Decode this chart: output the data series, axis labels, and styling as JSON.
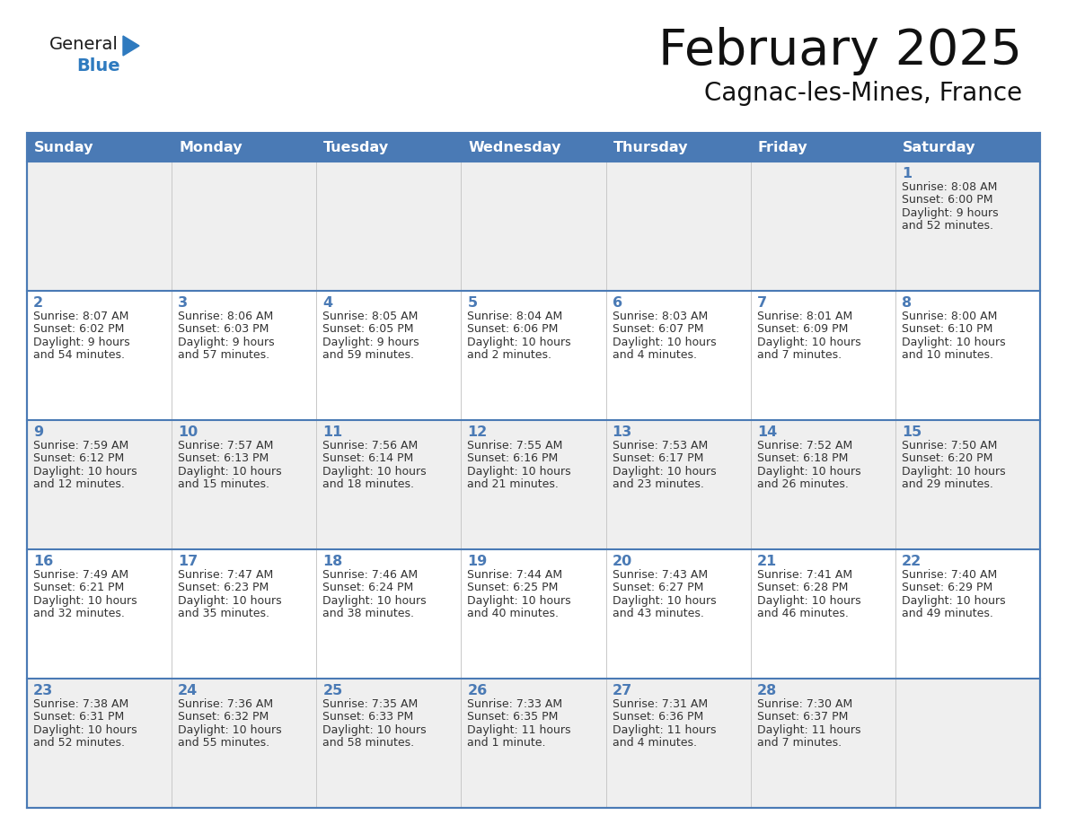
{
  "title": "February 2025",
  "subtitle": "Cagnac-les-Mines, France",
  "days_of_week": [
    "Sunday",
    "Monday",
    "Tuesday",
    "Wednesday",
    "Thursday",
    "Friday",
    "Saturday"
  ],
  "header_bg": "#4a7ab5",
  "header_text": "#ffffff",
  "row_bg_odd": "#efefef",
  "row_bg_even": "#ffffff",
  "border_color": "#4a7ab5",
  "day_number_color": "#4a7ab5",
  "text_color": "#333333",
  "logo_general_color": "#1a1a1a",
  "logo_blue_color": "#2e7abf",
  "calendar_data": [
    {
      "day": 1,
      "col": 6,
      "row": 0,
      "sunrise": "8:08 AM",
      "sunset": "6:00 PM",
      "daylight_line1": "Daylight: 9 hours",
      "daylight_line2": "and 52 minutes."
    },
    {
      "day": 2,
      "col": 0,
      "row": 1,
      "sunrise": "8:07 AM",
      "sunset": "6:02 PM",
      "daylight_line1": "Daylight: 9 hours",
      "daylight_line2": "and 54 minutes."
    },
    {
      "day": 3,
      "col": 1,
      "row": 1,
      "sunrise": "8:06 AM",
      "sunset": "6:03 PM",
      "daylight_line1": "Daylight: 9 hours",
      "daylight_line2": "and 57 minutes."
    },
    {
      "day": 4,
      "col": 2,
      "row": 1,
      "sunrise": "8:05 AM",
      "sunset": "6:05 PM",
      "daylight_line1": "Daylight: 9 hours",
      "daylight_line2": "and 59 minutes."
    },
    {
      "day": 5,
      "col": 3,
      "row": 1,
      "sunrise": "8:04 AM",
      "sunset": "6:06 PM",
      "daylight_line1": "Daylight: 10 hours",
      "daylight_line2": "and 2 minutes."
    },
    {
      "day": 6,
      "col": 4,
      "row": 1,
      "sunrise": "8:03 AM",
      "sunset": "6:07 PM",
      "daylight_line1": "Daylight: 10 hours",
      "daylight_line2": "and 4 minutes."
    },
    {
      "day": 7,
      "col": 5,
      "row": 1,
      "sunrise": "8:01 AM",
      "sunset": "6:09 PM",
      "daylight_line1": "Daylight: 10 hours",
      "daylight_line2": "and 7 minutes."
    },
    {
      "day": 8,
      "col": 6,
      "row": 1,
      "sunrise": "8:00 AM",
      "sunset": "6:10 PM",
      "daylight_line1": "Daylight: 10 hours",
      "daylight_line2": "and 10 minutes."
    },
    {
      "day": 9,
      "col": 0,
      "row": 2,
      "sunrise": "7:59 AM",
      "sunset": "6:12 PM",
      "daylight_line1": "Daylight: 10 hours",
      "daylight_line2": "and 12 minutes."
    },
    {
      "day": 10,
      "col": 1,
      "row": 2,
      "sunrise": "7:57 AM",
      "sunset": "6:13 PM",
      "daylight_line1": "Daylight: 10 hours",
      "daylight_line2": "and 15 minutes."
    },
    {
      "day": 11,
      "col": 2,
      "row": 2,
      "sunrise": "7:56 AM",
      "sunset": "6:14 PM",
      "daylight_line1": "Daylight: 10 hours",
      "daylight_line2": "and 18 minutes."
    },
    {
      "day": 12,
      "col": 3,
      "row": 2,
      "sunrise": "7:55 AM",
      "sunset": "6:16 PM",
      "daylight_line1": "Daylight: 10 hours",
      "daylight_line2": "and 21 minutes."
    },
    {
      "day": 13,
      "col": 4,
      "row": 2,
      "sunrise": "7:53 AM",
      "sunset": "6:17 PM",
      "daylight_line1": "Daylight: 10 hours",
      "daylight_line2": "and 23 minutes."
    },
    {
      "day": 14,
      "col": 5,
      "row": 2,
      "sunrise": "7:52 AM",
      "sunset": "6:18 PM",
      "daylight_line1": "Daylight: 10 hours",
      "daylight_line2": "and 26 minutes."
    },
    {
      "day": 15,
      "col": 6,
      "row": 2,
      "sunrise": "7:50 AM",
      "sunset": "6:20 PM",
      "daylight_line1": "Daylight: 10 hours",
      "daylight_line2": "and 29 minutes."
    },
    {
      "day": 16,
      "col": 0,
      "row": 3,
      "sunrise": "7:49 AM",
      "sunset": "6:21 PM",
      "daylight_line1": "Daylight: 10 hours",
      "daylight_line2": "and 32 minutes."
    },
    {
      "day": 17,
      "col": 1,
      "row": 3,
      "sunrise": "7:47 AM",
      "sunset": "6:23 PM",
      "daylight_line1": "Daylight: 10 hours",
      "daylight_line2": "and 35 minutes."
    },
    {
      "day": 18,
      "col": 2,
      "row": 3,
      "sunrise": "7:46 AM",
      "sunset": "6:24 PM",
      "daylight_line1": "Daylight: 10 hours",
      "daylight_line2": "and 38 minutes."
    },
    {
      "day": 19,
      "col": 3,
      "row": 3,
      "sunrise": "7:44 AM",
      "sunset": "6:25 PM",
      "daylight_line1": "Daylight: 10 hours",
      "daylight_line2": "and 40 minutes."
    },
    {
      "day": 20,
      "col": 4,
      "row": 3,
      "sunrise": "7:43 AM",
      "sunset": "6:27 PM",
      "daylight_line1": "Daylight: 10 hours",
      "daylight_line2": "and 43 minutes."
    },
    {
      "day": 21,
      "col": 5,
      "row": 3,
      "sunrise": "7:41 AM",
      "sunset": "6:28 PM",
      "daylight_line1": "Daylight: 10 hours",
      "daylight_line2": "and 46 minutes."
    },
    {
      "day": 22,
      "col": 6,
      "row": 3,
      "sunrise": "7:40 AM",
      "sunset": "6:29 PM",
      "daylight_line1": "Daylight: 10 hours",
      "daylight_line2": "and 49 minutes."
    },
    {
      "day": 23,
      "col": 0,
      "row": 4,
      "sunrise": "7:38 AM",
      "sunset": "6:31 PM",
      "daylight_line1": "Daylight: 10 hours",
      "daylight_line2": "and 52 minutes."
    },
    {
      "day": 24,
      "col": 1,
      "row": 4,
      "sunrise": "7:36 AM",
      "sunset": "6:32 PM",
      "daylight_line1": "Daylight: 10 hours",
      "daylight_line2": "and 55 minutes."
    },
    {
      "day": 25,
      "col": 2,
      "row": 4,
      "sunrise": "7:35 AM",
      "sunset": "6:33 PM",
      "daylight_line1": "Daylight: 10 hours",
      "daylight_line2": "and 58 minutes."
    },
    {
      "day": 26,
      "col": 3,
      "row": 4,
      "sunrise": "7:33 AM",
      "sunset": "6:35 PM",
      "daylight_line1": "Daylight: 11 hours",
      "daylight_line2": "and 1 minute."
    },
    {
      "day": 27,
      "col": 4,
      "row": 4,
      "sunrise": "7:31 AM",
      "sunset": "6:36 PM",
      "daylight_line1": "Daylight: 11 hours",
      "daylight_line2": "and 4 minutes."
    },
    {
      "day": 28,
      "col": 5,
      "row": 4,
      "sunrise": "7:30 AM",
      "sunset": "6:37 PM",
      "daylight_line1": "Daylight: 11 hours",
      "daylight_line2": "and 7 minutes."
    }
  ]
}
